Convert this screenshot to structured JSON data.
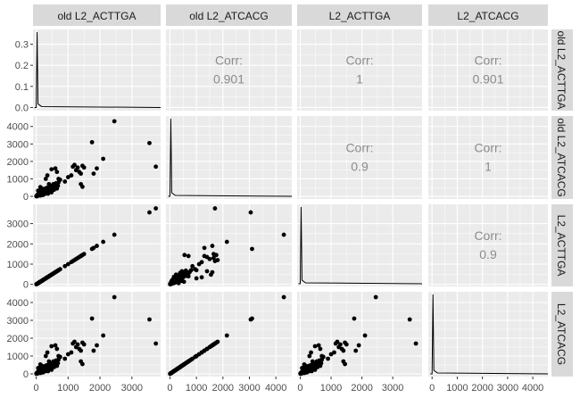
{
  "chart_data": {
    "type": "scatter",
    "title": "",
    "variables": [
      "old L2_ACTTGA",
      "old L2_ATCACG",
      "L2_ACTTGA",
      "L2_ATCACG"
    ],
    "colors": {
      "panel_bg": "#ebebeb",
      "grid": "#ffffff",
      "strip_bg": "#d9d9d9",
      "points": "#000000",
      "corr_text": "#8c8c8c",
      "axis_text": "#4d4d4d"
    },
    "axes": {
      "old L2_ACTTGA": {
        "range": [
          -100,
          3900
        ],
        "ticks": [
          0,
          1000,
          2000,
          3000
        ]
      },
      "old L2_ATCACG": {
        "range": [
          -150,
          4600
        ],
        "ticks": [
          0,
          1000,
          2000,
          3000,
          4000
        ],
        "tick_labels": [
          "0",
          "1000",
          "2000",
          "3000",
          "4000"
        ]
      },
      "L2_ACTTGA": {
        "range": [
          -100,
          3950
        ],
        "ticks": [
          0,
          1000,
          2000,
          3000
        ]
      },
      "L2_ATCACG": {
        "range": [
          -150,
          4600
        ],
        "ticks": [
          0,
          1000,
          2000,
          3000,
          4000
        ],
        "tick_labels": [
          "0",
          "1000",
          "2000",
          "3000",
          "4000"
        ]
      }
    },
    "x_tick_labels": [
      [
        "0",
        "1000",
        "2000",
        "3000"
      ],
      [
        "0",
        "1000",
        "2000",
        "3000",
        "4000"
      ],
      [
        "0",
        "1000",
        "2000",
        "3000"
      ],
      [
        "0",
        "1000",
        "2000",
        "3000",
        "4000"
      ]
    ],
    "y_tick_labels": [
      [
        "0.0",
        "0.1",
        "0.2",
        "0.3"
      ],
      [
        "0",
        "1000",
        "2000",
        "3000",
        "4000"
      ],
      [
        "0",
        "1000",
        "2000",
        "3000",
        "4000"
      ],
      [
        "0",
        "1000",
        "2000",
        "3000",
        "4000"
      ]
    ],
    "density_axis": {
      "range": [
        -0.015,
        0.37
      ],
      "ticks": [
        0,
        0.1,
        0.2,
        0.3
      ]
    },
    "density_peak": 0.36,
    "correlations": [
      {
        "row": 0,
        "col": 1,
        "label": "Corr:",
        "value": "0.901"
      },
      {
        "row": 0,
        "col": 2,
        "label": "Corr:",
        "value": "1"
      },
      {
        "row": 0,
        "col": 3,
        "label": "Corr:",
        "value": "0.901"
      },
      {
        "row": 1,
        "col": 2,
        "label": "Corr:",
        "value": "0.9"
      },
      {
        "row": 1,
        "col": 3,
        "label": "Corr:",
        "value": "1"
      },
      {
        "row": 2,
        "col": 3,
        "label": "Corr:",
        "value": "0.9"
      }
    ],
    "points": [
      [
        5,
        10,
        5,
        10
      ],
      [
        10,
        25,
        10,
        25
      ],
      [
        15,
        5,
        15,
        5
      ],
      [
        20,
        40,
        20,
        40
      ],
      [
        25,
        15,
        25,
        15
      ],
      [
        30,
        60,
        30,
        60
      ],
      [
        35,
        30,
        35,
        30
      ],
      [
        40,
        80,
        40,
        80
      ],
      [
        45,
        20,
        45,
        20
      ],
      [
        50,
        100,
        50,
        100
      ],
      [
        55,
        45,
        55,
        45
      ],
      [
        60,
        130,
        60,
        130
      ],
      [
        70,
        70,
        70,
        70
      ],
      [
        75,
        160,
        75,
        160
      ],
      [
        80,
        110,
        80,
        110
      ],
      [
        90,
        60,
        90,
        60
      ],
      [
        95,
        200,
        95,
        200
      ],
      [
        100,
        140,
        100,
        140
      ],
      [
        110,
        250,
        110,
        250
      ],
      [
        115,
        90,
        115,
        90
      ],
      [
        120,
        180,
        120,
        180
      ],
      [
        130,
        300,
        130,
        300
      ],
      [
        135,
        50,
        135,
        50
      ],
      [
        140,
        230,
        140,
        230
      ],
      [
        150,
        350,
        150,
        350
      ],
      [
        160,
        120,
        160,
        120
      ],
      [
        170,
        260,
        170,
        260
      ],
      [
        180,
        420,
        180,
        420
      ],
      [
        190,
        170,
        190,
        170
      ],
      [
        200,
        320,
        200,
        320
      ],
      [
        210,
        80,
        210,
        80
      ],
      [
        220,
        240,
        220,
        240
      ],
      [
        230,
        380,
        230,
        380
      ],
      [
        240,
        200,
        240,
        200
      ],
      [
        250,
        300,
        250,
        300
      ],
      [
        260,
        130,
        260,
        130
      ],
      [
        280,
        270,
        280,
        270
      ],
      [
        290,
        450,
        290,
        450
      ],
      [
        300,
        350,
        300,
        350
      ],
      [
        310,
        180,
        310,
        180
      ],
      [
        320,
        280,
        320,
        280
      ],
      [
        330,
        480,
        330,
        480
      ],
      [
        340,
        230,
        340,
        230
      ],
      [
        350,
        400,
        350,
        400
      ],
      [
        360,
        310,
        360,
        310
      ],
      [
        370,
        150,
        370,
        150
      ],
      [
        380,
        520,
        380,
        520
      ],
      [
        390,
        370,
        390,
        370
      ],
      [
        400,
        280,
        400,
        280
      ],
      [
        410,
        450,
        410,
        450
      ],
      [
        420,
        600,
        420,
        600
      ],
      [
        440,
        330,
        440,
        330
      ],
      [
        450,
        550,
        450,
        550
      ],
      [
        470,
        420,
        470,
        420
      ],
      [
        480,
        230,
        480,
        230
      ],
      [
        500,
        620,
        500,
        620
      ],
      [
        520,
        500,
        520,
        500
      ],
      [
        540,
        700,
        540,
        700
      ],
      [
        560,
        380,
        560,
        380
      ],
      [
        580,
        650,
        580,
        650
      ],
      [
        600,
        560,
        600,
        560
      ],
      [
        620,
        750,
        620,
        750
      ],
      [
        650,
        450,
        650,
        450
      ],
      [
        680,
        600,
        680,
        600
      ],
      [
        700,
        800,
        700,
        800
      ],
      [
        130,
        530,
        130,
        530
      ],
      [
        180,
        450,
        180,
        450
      ],
      [
        60,
        330,
        60,
        330
      ],
      [
        300,
        1000,
        300,
        1000
      ],
      [
        350,
        1200,
        350,
        1200
      ],
      [
        400,
        700,
        400,
        700
      ],
      [
        480,
        1550,
        480,
        1550
      ],
      [
        600,
        1600,
        600,
        1600
      ],
      [
        650,
        1400,
        650,
        1400
      ],
      [
        700,
        1000,
        700,
        1000
      ],
      [
        750,
        950,
        750,
        950
      ],
      [
        900,
        850,
        900,
        850
      ],
      [
        1000,
        1100,
        1000,
        1100
      ],
      [
        1100,
        1200,
        1100,
        1200
      ],
      [
        1150,
        1700,
        1150,
        1700
      ],
      [
        1200,
        1800,
        1200,
        1800
      ],
      [
        1250,
        1500,
        1250,
        1500
      ],
      [
        1300,
        1650,
        1300,
        1650
      ],
      [
        1350,
        1400,
        1350,
        1400
      ],
      [
        1400,
        1300,
        1400,
        1300
      ],
      [
        1450,
        1750,
        1450,
        1750
      ],
      [
        1500,
        1650,
        1500,
        1650
      ],
      [
        1400,
        700,
        1400,
        700
      ],
      [
        1450,
        550,
        1450,
        550
      ],
      [
        1750,
        3100,
        1750,
        3100
      ],
      [
        1800,
        1300,
        1800,
        1300
      ],
      [
        1900,
        1600,
        1900,
        1600
      ],
      [
        2100,
        2150,
        2100,
        2150
      ],
      [
        2450,
        4300,
        2450,
        4300
      ],
      [
        3550,
        3050,
        3550,
        3050
      ],
      [
        3750,
        1700,
        3750,
        1700
      ]
    ]
  }
}
